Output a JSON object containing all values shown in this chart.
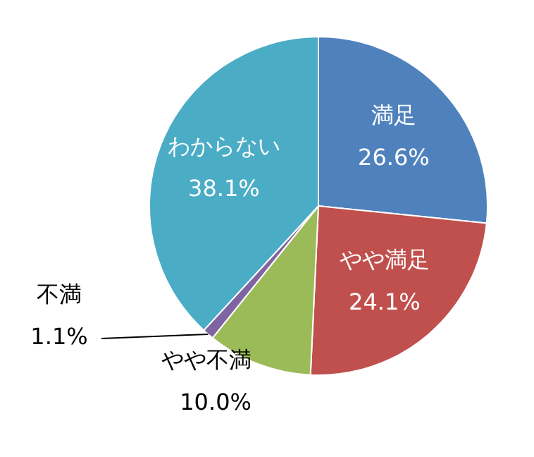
{
  "chart_data": {
    "type": "pie",
    "categories": [
      "満足",
      "やや満足",
      "やや不満",
      "不満",
      "わからない"
    ],
    "values": [
      26.6,
      24.1,
      10.0,
      1.1,
      38.1
    ],
    "colors": [
      "#4f81bd",
      "#c0504d",
      "#9bbb59",
      "#8064a2",
      "#4bacc6"
    ],
    "value_labels": [
      "26.6%",
      "24.1%",
      "10.0%",
      "1.1%",
      "38.1%"
    ]
  }
}
